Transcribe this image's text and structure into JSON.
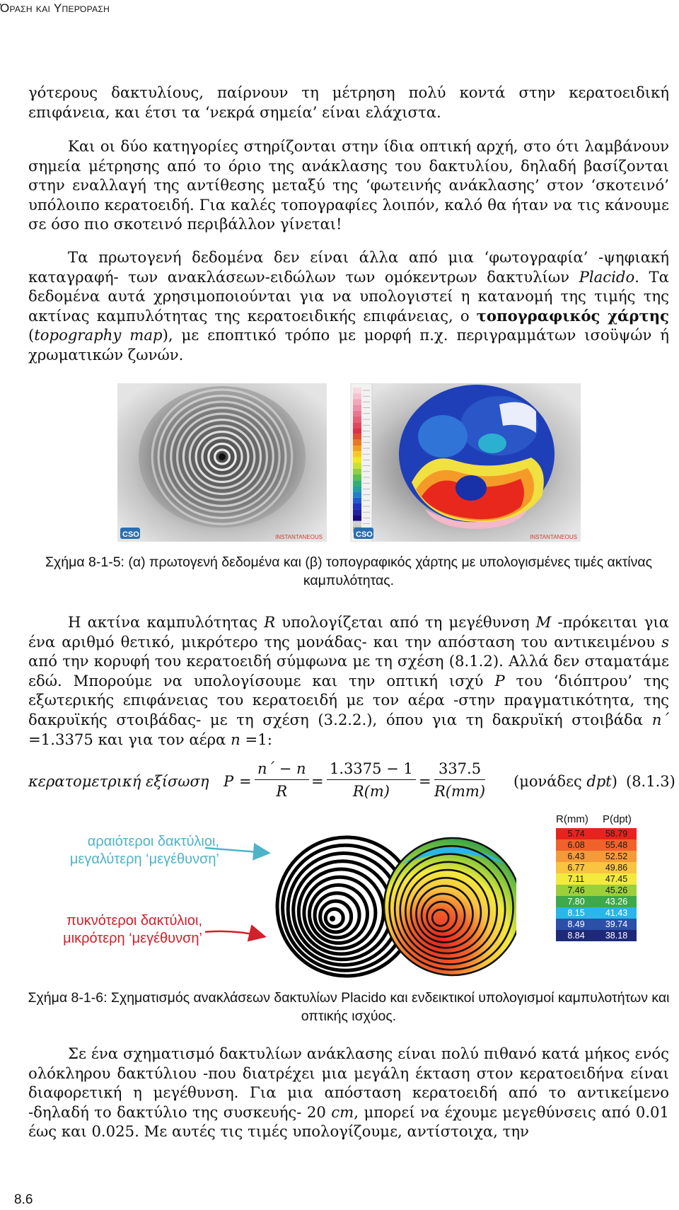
{
  "header": "Όραση και Υπερόραση",
  "page_number": "8.6",
  "para1": "γότερους δακτυλίους, παίρνουν τη μέτρηση πολύ κοντά στην κερατοειδική επιφάνεια, και έτσι τα ‘νεκρά σημεία’ είναι ελάχιστα.",
  "para2": "Και οι δύο κατηγορίες στηρίζονται στην ίδια οπτική αρχή, στο ότι λαμβάνουν σημεία μέτρησης από το όριο της ανάκλασης του δακτυλίου, δηλαδή βασίζονται στην εναλλαγή της αντίθεσης μεταξύ της ‘φωτεινής ανάκλασης’ στον ‘σκοτεινό’ υπόλοιπο κερατοειδή. Για καλές τοπογραφίες λοιπόν, καλό θα ήταν να τις κάνουμε σε όσο πιο σκοτεινό περιβάλλον γίνεται!",
  "para3": {
    "a": "Τα πρωτογενή δεδομένα δεν είναι άλλα από μια ‘φωτογραφία’ -ψηφιακή καταγραφή- των ανακλάσεων-ειδώλων των ομόκεντρων δακτυλίων ",
    "b": "Placido",
    "c": ". Τα δεδομένα αυτά χρησιμοποιούνται για να υπολογιστεί η κατανομή της τιμής της ακτίνας καμπυλότητας της κερατοειδικής επιφάνειας, ο ",
    "d": "τοπογραφικός χάρτης",
    "e": " (",
    "f": "topography map",
    "g": "), με εποπτικό τρόπο με μορφή π.χ. περιγραμμάτων ισοϋψών ή χρωματικών ζωνών."
  },
  "fig5": {
    "logo_left": "CSO",
    "logo_right": "CSO",
    "stamp_left": "INSTANTANEOUS",
    "stamp_right": "INSTANTANEOUS",
    "caption": "Σχήμα 8-1-5: (α) πρωτογενή δεδομένα και (β) τοπογραφικός χάρτης με υπολογισμένες τιμές ακτίνας καμπυλότητας.",
    "scale_colors": [
      "#f8d8e0",
      "#f5c3d0",
      "#f0a8bc",
      "#ec90a8",
      "#e87890",
      "#e46078",
      "#e04860",
      "#dc3048",
      "#e05030",
      "#e87828",
      "#f0a020",
      "#f8c820",
      "#f0e820",
      "#c8e030",
      "#90d040",
      "#58c050",
      "#30b070",
      "#20a0a0",
      "#2080c8",
      "#2058d0",
      "#2030c0",
      "#2020a0",
      "#180880",
      "#d0d0d0",
      "#b0b0b0"
    ]
  },
  "para4": {
    "a": "Η ακτίνα καμπυλότητας ",
    "R": "R",
    "b": " υπολογίζεται από τη μεγέθυνση ",
    "M": "M",
    "c": " -πρόκειται για ένα αριθμό θετικό, μικρότερο της μονάδας- και την απόσταση του αντικειμένου ",
    "s": "s",
    "d": " από την κορυφή του κερατοειδή σύμφωνα με τη σχέση (8.1.2). Αλλά δεν σταματάμε εδώ. Μπορούμε να υπολογίσουμε και την οπτική ισχύ ",
    "P": "P",
    "e": " του ‘διόπτρου’ της εξωτερικής επιφάνειας του κερατοειδή με τον αέρα -στην πραγματικότητα, της δακρυϊκής στοιβάδας- με τη σχέση (3.2.2.), όπου για τη δακρυϊκή στοιβάδα ",
    "n1": "n΄",
    "f": " =1.3375 και για τον αέρα ",
    "n2": "n",
    "g": " =1:"
  },
  "equation": {
    "label": "κερατομετρική εξίσωση",
    "P": "P",
    "eq": "=",
    "f1_num": "n΄ − n",
    "f1_den": "R",
    "f2_num": "1.3375 − 1",
    "f2_den": "R(m)",
    "f3_num": "337.5",
    "f3_den": "R(mm)",
    "units_open": "(μονάδες ",
    "units_dpt": "dpt",
    "units_close": ")",
    "number": "(8.1.3)"
  },
  "fig6": {
    "ann_blue_1": "αραιότεροι δακτύλιοι,",
    "ann_blue_2": "μεγαλύτερη ‘μεγέθυνση’",
    "ann_red_1": "πυκνότεροι δακτύλιοι,",
    "ann_red_2": "μικρότερη ‘μεγέθυνση’",
    "head_R": "R(mm)",
    "head_P": "P(dpt)",
    "rows": [
      {
        "r": "5.74",
        "p": "58.79",
        "c": "#e8231e",
        "t": "#1a1a1a"
      },
      {
        "r": "6.08",
        "p": "55.48",
        "c": "#f0622a",
        "t": "#1a1a1a"
      },
      {
        "r": "6.43",
        "p": "52.52",
        "c": "#f59a38",
        "t": "#1a1a1a"
      },
      {
        "r": "6.77",
        "p": "49.86",
        "c": "#f9c440",
        "t": "#1a1a1a"
      },
      {
        "r": "7.11",
        "p": "47.45",
        "c": "#f2ea3c",
        "t": "#1a1a1a"
      },
      {
        "r": "7.46",
        "p": "45.26",
        "c": "#9ccf3a",
        "t": "#1a1a1a"
      },
      {
        "r": "7.80",
        "p": "43.26",
        "c": "#3fa848",
        "t": "#ffffff"
      },
      {
        "r": "8.15",
        "p": "41.43",
        "c": "#29b6e8",
        "t": "#ffffff"
      },
      {
        "r": "8.49",
        "p": "39.74",
        "c": "#2c4fa8",
        "t": "#ffffff"
      },
      {
        "r": "8.84",
        "p": "38.18",
        "c": "#1e2a78",
        "t": "#ffffff"
      }
    ],
    "caption": "Σχήμα 8-1-6: Σχηματισμός ανακλάσεων δακτυλίων Placido και ενδεικτικοί υπολογισμοί καμπυλοτήτων και οπτικής ισχύος."
  },
  "para5": {
    "a": "Σε ένα σχηματισμό δακτυλίων ανάκλασης είναι πολύ πιθανό κατά μήκος ενός ολόκληρου δακτύλιου -που διατρέχει μια μεγάλη έκταση στον κερατοειδήνα είναι διαφορετική η μεγέθυνση. Για μια απόσταση κερατοειδή από το αντικείμενο -δηλαδή το δακτύλιο της συσκευής- 20 ",
    "cm": "cm",
    "b": ", μπορεί να έχουμε μεγεθύνσεις από 0.01 έως και 0.025. Με αυτές τις τιμές υπολογίζουμε, αντίστοιχα, την"
  }
}
